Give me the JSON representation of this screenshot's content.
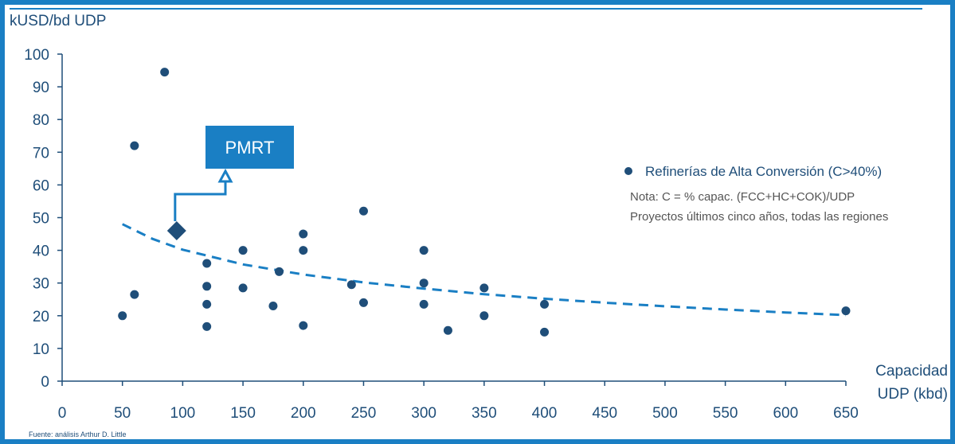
{
  "chart_data": {
    "type": "scatter",
    "ylabel": "kUSD/bd UDP",
    "xlabel_line1": "Capacidad",
    "xlabel_line2": "UDP (kbd)",
    "xlim": [
      0,
      650
    ],
    "ylim": [
      0,
      100
    ],
    "xticks": [
      0,
      50,
      100,
      150,
      200,
      250,
      300,
      350,
      400,
      450,
      500,
      550,
      600,
      650
    ],
    "yticks": [
      0,
      10,
      20,
      30,
      40,
      50,
      60,
      70,
      80,
      90,
      100
    ],
    "grid": false,
    "series": [
      {
        "name": "Refinerías de Alta Conversión (C>40%)",
        "color": "#1f4e79",
        "marker": "circle",
        "points": [
          {
            "x": 50,
            "y": 20
          },
          {
            "x": 60,
            "y": 72
          },
          {
            "x": 60,
            "y": 26.5
          },
          {
            "x": 85,
            "y": 94.5
          },
          {
            "x": 120,
            "y": 36
          },
          {
            "x": 120,
            "y": 29
          },
          {
            "x": 120,
            "y": 23.5
          },
          {
            "x": 120,
            "y": 16.7
          },
          {
            "x": 150,
            "y": 40
          },
          {
            "x": 150,
            "y": 28.5
          },
          {
            "x": 175,
            "y": 23
          },
          {
            "x": 180,
            "y": 33.5
          },
          {
            "x": 200,
            "y": 45
          },
          {
            "x": 200,
            "y": 40
          },
          {
            "x": 200,
            "y": 17
          },
          {
            "x": 240,
            "y": 29.5
          },
          {
            "x": 250,
            "y": 52
          },
          {
            "x": 250,
            "y": 24
          },
          {
            "x": 300,
            "y": 40
          },
          {
            "x": 300,
            "y": 30
          },
          {
            "x": 300,
            "y": 23.5
          },
          {
            "x": 320,
            "y": 15.5
          },
          {
            "x": 350,
            "y": 28.5
          },
          {
            "x": 350,
            "y": 20
          },
          {
            "x": 400,
            "y": 23.5
          },
          {
            "x": 400,
            "y": 15
          },
          {
            "x": 650,
            "y": 21.5
          }
        ]
      }
    ],
    "trend": {
      "style": "dashed",
      "color": "#1a7fc4",
      "points": [
        {
          "x": 50,
          "y": 48
        },
        {
          "x": 75,
          "y": 43.5
        },
        {
          "x": 100,
          "y": 40.2
        },
        {
          "x": 150,
          "y": 35.7
        },
        {
          "x": 200,
          "y": 32.6
        },
        {
          "x": 250,
          "y": 30.2
        },
        {
          "x": 300,
          "y": 28.3
        },
        {
          "x": 350,
          "y": 26.6
        },
        {
          "x": 400,
          "y": 25.2
        },
        {
          "x": 450,
          "y": 24
        },
        {
          "x": 500,
          "y": 22.9
        },
        {
          "x": 550,
          "y": 21.9
        },
        {
          "x": 600,
          "y": 21
        },
        {
          "x": 650,
          "y": 20.2
        }
      ]
    },
    "highlight": {
      "label": "PMRT",
      "x": 95,
      "y": 46,
      "marker": "diamond",
      "color": "#1f4e79",
      "callout_color": "#1a7fc4"
    },
    "legend": {
      "placement": "right",
      "entry": "Refinerías de Alta Conversión (C>40%)",
      "note_line1": "Nota: C = % capac. (FCC+HC+COK)/UDP",
      "note_line2": "Proyectos últimos cinco años, todas las regiones"
    },
    "source": "Fuente: análisis Arthur D. Little"
  },
  "colors": {
    "frame": "#1a7fc4",
    "axis": "#1f4e79",
    "points": "#1f4e79",
    "trend": "#1a7fc4",
    "callout": "#1a7fc4"
  }
}
